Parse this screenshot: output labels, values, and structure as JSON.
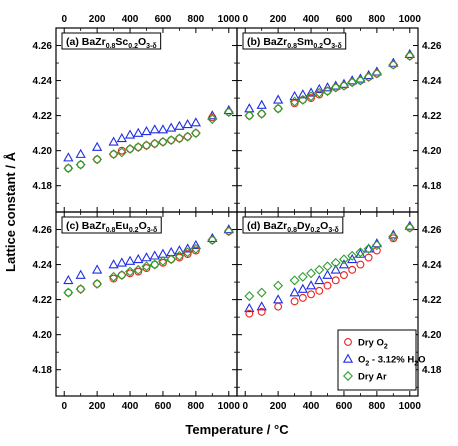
{
  "chart_data": {
    "type": "scatter",
    "xlabel": "Temperature / °C",
    "ylabel": "Lattice constant / Å",
    "xlim": [
      -50,
      1050
    ],
    "ylim": [
      4.165,
      4.27
    ],
    "x_ticks": [
      "0",
      "200",
      "400",
      "600",
      "800",
      "1000"
    ],
    "y_ticks": [
      "4.18",
      "4.20",
      "4.22",
      "4.24",
      "4.26"
    ],
    "legend": {
      "placement": "bottom-right of panel (d)",
      "entries": [
        {
          "base": "Dry O",
          "sub": "2",
          "tail": ""
        },
        {
          "base": "O",
          "sub": "2",
          "tail": " - 3.12% H",
          "sub2": "2",
          "tail2": "O"
        },
        {
          "base": "Dry Ar",
          "sub": "",
          "tail": ""
        }
      ]
    },
    "series_styles": [
      {
        "key": "dry_o2",
        "marker": "circle",
        "color": "#e8231f"
      },
      {
        "key": "wet_o2",
        "marker": "triangle",
        "color": "#1f2ee6"
      },
      {
        "key": "dry_ar",
        "marker": "diamond",
        "color": "#2f9e2f"
      }
    ],
    "panels": [
      {
        "label_parts": [
          {
            "t": "(a) BaZr"
          },
          {
            "t": "0.8",
            "sub": true
          },
          {
            "t": "Sc"
          },
          {
            "t": "0.2",
            "sub": true
          },
          {
            "t": "O"
          },
          {
            "t": "3-δ",
            "sub": true
          }
        ],
        "series": [
          {
            "key": "dry_o2",
            "x": [
              25,
              100,
              200,
              300,
              350,
              400,
              450,
              500,
              550,
              600,
              650,
              700,
              750,
              800,
              900,
              1000
            ],
            "y": [
              4.19,
              4.192,
              4.195,
              4.198,
              4.2,
              4.201,
              4.202,
              4.203,
              4.204,
              4.205,
              4.206,
              4.207,
              4.208,
              4.21,
              4.219,
              4.222
            ]
          },
          {
            "key": "wet_o2",
            "x": [
              25,
              100,
              200,
              300,
              350,
              400,
              450,
              500,
              550,
              600,
              650,
              700,
              750,
              800,
              900,
              1000
            ],
            "y": [
              4.196,
              4.198,
              4.202,
              4.205,
              4.207,
              4.209,
              4.21,
              4.211,
              4.212,
              4.212,
              4.213,
              4.214,
              4.215,
              4.216,
              4.22,
              4.223
            ]
          },
          {
            "key": "dry_ar",
            "x": [
              25,
              100,
              200,
              300,
              350,
              400,
              450,
              500,
              550,
              600,
              650,
              700,
              750,
              800,
              900,
              1000
            ],
            "y": [
              4.19,
              4.192,
              4.195,
              4.198,
              4.199,
              4.201,
              4.202,
              4.203,
              4.204,
              4.205,
              4.206,
              4.207,
              4.208,
              4.21,
              4.218,
              4.222
            ]
          }
        ]
      },
      {
        "label_parts": [
          {
            "t": "(b) BaZr"
          },
          {
            "t": "0.8",
            "sub": true
          },
          {
            "t": "Sm"
          },
          {
            "t": "0.2",
            "sub": true
          },
          {
            "t": "O"
          },
          {
            "t": "3-δ",
            "sub": true
          }
        ],
        "series": [
          {
            "key": "dry_o2",
            "x": [
              25,
              100,
              200,
              300,
              350,
              400,
              450,
              500,
              550,
              600,
              650,
              700,
              750,
              800,
              900,
              1000
            ],
            "y": [
              4.22,
              4.221,
              4.224,
              4.227,
              4.229,
              4.23,
              4.232,
              4.234,
              4.236,
              4.237,
              4.239,
              4.24,
              4.242,
              4.244,
              4.249,
              4.254
            ]
          },
          {
            "key": "wet_o2",
            "x": [
              25,
              100,
              200,
              300,
              350,
              400,
              450,
              500,
              550,
              600,
              650,
              700,
              750,
              800,
              900,
              1000
            ],
            "y": [
              4.224,
              4.226,
              4.229,
              4.231,
              4.232,
              4.233,
              4.235,
              4.236,
              4.237,
              4.238,
              4.24,
              4.241,
              4.243,
              4.245,
              4.25,
              4.255
            ]
          },
          {
            "key": "dry_ar",
            "x": [
              25,
              100,
              200,
              300,
              350,
              400,
              450,
              500,
              550,
              600,
              650,
              700,
              750,
              800,
              900,
              1000
            ],
            "y": [
              4.22,
              4.221,
              4.224,
              4.228,
              4.229,
              4.231,
              4.233,
              4.234,
              4.236,
              4.237,
              4.239,
              4.24,
              4.242,
              4.244,
              4.249,
              4.254
            ]
          }
        ]
      },
      {
        "label_parts": [
          {
            "t": "(c) BaZr"
          },
          {
            "t": "0.8",
            "sub": true
          },
          {
            "t": "Eu"
          },
          {
            "t": "0.2",
            "sub": true
          },
          {
            "t": "O"
          },
          {
            "t": "3-δ",
            "sub": true
          }
        ],
        "series": [
          {
            "key": "dry_o2",
            "x": [
              25,
              100,
              200,
              300,
              350,
              400,
              450,
              500,
              550,
              600,
              650,
              700,
              750,
              800,
              900,
              1000
            ],
            "y": [
              4.224,
              4.226,
              4.229,
              4.232,
              4.234,
              4.235,
              4.236,
              4.238,
              4.24,
              4.241,
              4.243,
              4.244,
              4.246,
              4.248,
              4.254,
              4.259
            ]
          },
          {
            "key": "wet_o2",
            "x": [
              25,
              100,
              200,
              300,
              350,
              400,
              450,
              500,
              550,
              600,
              650,
              700,
              750,
              800,
              900,
              1000
            ],
            "y": [
              4.231,
              4.234,
              4.237,
              4.24,
              4.241,
              4.242,
              4.243,
              4.244,
              4.245,
              4.246,
              4.247,
              4.248,
              4.249,
              4.251,
              4.255,
              4.26
            ]
          },
          {
            "key": "dry_ar",
            "x": [
              25,
              100,
              200,
              300,
              350,
              400,
              450,
              500,
              550,
              600,
              650,
              700,
              750,
              800,
              900,
              1000
            ],
            "y": [
              4.224,
              4.226,
              4.229,
              4.233,
              4.234,
              4.236,
              4.237,
              4.239,
              4.24,
              4.242,
              4.243,
              4.245,
              4.247,
              4.249,
              4.254,
              4.259
            ]
          }
        ]
      },
      {
        "label_parts": [
          {
            "t": "(d) BaZr"
          },
          {
            "t": "0.8",
            "sub": true
          },
          {
            "t": "Dy"
          },
          {
            "t": "0.2",
            "sub": true
          },
          {
            "t": "O"
          },
          {
            "t": "3-δ",
            "sub": true
          }
        ],
        "series": [
          {
            "key": "dry_o2",
            "x": [
              25,
              100,
              200,
              300,
              350,
              400,
              450,
              500,
              550,
              600,
              650,
              700,
              750,
              800,
              900,
              1000
            ],
            "y": [
              4.212,
              4.213,
              4.216,
              4.219,
              4.221,
              4.223,
              4.225,
              4.228,
              4.231,
              4.234,
              4.237,
              4.24,
              4.244,
              4.248,
              4.255,
              4.261
            ]
          },
          {
            "key": "wet_o2",
            "x": [
              25,
              100,
              200,
              300,
              350,
              400,
              450,
              500,
              550,
              600,
              650,
              700,
              750,
              800,
              900,
              1000
            ],
            "y": [
              4.215,
              4.216,
              4.22,
              4.224,
              4.226,
              4.228,
              4.231,
              4.234,
              4.237,
              4.24,
              4.243,
              4.246,
              4.249,
              4.252,
              4.257,
              4.262
            ]
          },
          {
            "key": "dry_ar",
            "x": [
              25,
              100,
              200,
              300,
              350,
              400,
              450,
              500,
              550,
              600,
              650,
              700,
              750,
              800,
              900,
              1000
            ],
            "y": [
              4.222,
              4.224,
              4.228,
              4.231,
              4.233,
              4.235,
              4.237,
              4.239,
              4.241,
              4.243,
              4.245,
              4.247,
              4.249,
              4.251,
              4.256,
              4.261
            ]
          }
        ]
      }
    ]
  }
}
